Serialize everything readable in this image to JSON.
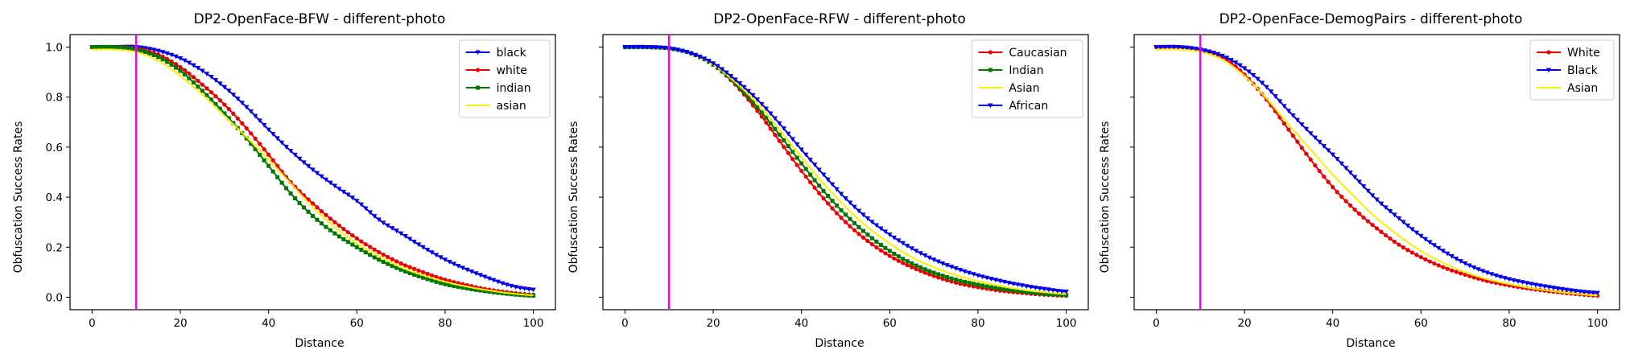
{
  "chart_data": [
    {
      "type": "line",
      "title": "DP2-OpenFace-BFW - different-photo",
      "xlabel": "Distance",
      "ylabel": "Obfuscation Success Rates",
      "xlim": [
        -5,
        105
      ],
      "ylim": [
        -0.05,
        1.05
      ],
      "xticks": [
        "0",
        "20",
        "40",
        "60",
        "80",
        "100"
      ],
      "yticks": [
        "0.0",
        "0.2",
        "0.4",
        "0.6",
        "0.8",
        "1.0"
      ],
      "legend": "top-right",
      "vline": {
        "x": 10,
        "color": "#dd11dd"
      },
      "series": [
        {
          "name": "black",
          "color": "#0000ee",
          "marker": "v",
          "x": [
            0,
            5,
            10,
            15,
            20,
            25,
            30,
            35,
            40,
            45,
            50,
            55,
            60,
            65,
            70,
            75,
            80,
            85,
            90,
            95,
            100
          ],
          "y": [
            1.0,
            1.0,
            1.0,
            0.985,
            0.955,
            0.905,
            0.84,
            0.76,
            0.67,
            0.585,
            0.51,
            0.445,
            0.385,
            0.31,
            0.255,
            0.2,
            0.15,
            0.11,
            0.075,
            0.045,
            0.03
          ]
        },
        {
          "name": "white",
          "color": "#ee0000",
          "marker": "o",
          "x": [
            0,
            5,
            10,
            15,
            20,
            25,
            30,
            35,
            40,
            45,
            50,
            55,
            60,
            65,
            70,
            75,
            80,
            85,
            90,
            95,
            100
          ],
          "y": [
            1.0,
            1.0,
            0.995,
            0.97,
            0.92,
            0.85,
            0.77,
            0.675,
            0.57,
            0.46,
            0.375,
            0.3,
            0.235,
            0.18,
            0.135,
            0.1,
            0.07,
            0.048,
            0.03,
            0.018,
            0.01
          ]
        },
        {
          "name": "indian",
          "color": "#007700",
          "marker": "s",
          "x": [
            0,
            5,
            10,
            15,
            20,
            25,
            30,
            35,
            40,
            45,
            50,
            55,
            60,
            65,
            70,
            75,
            80,
            85,
            90,
            95,
            100
          ],
          "y": [
            1.0,
            1.0,
            0.99,
            0.96,
            0.905,
            0.825,
            0.735,
            0.635,
            0.525,
            0.415,
            0.325,
            0.255,
            0.2,
            0.15,
            0.11,
            0.078,
            0.052,
            0.035,
            0.022,
            0.012,
            0.006
          ]
        },
        {
          "name": "asian",
          "color": "#ffee00",
          "marker": "",
          "x": [
            0,
            5,
            10,
            15,
            20,
            25,
            30,
            35,
            40,
            45,
            50,
            55,
            60,
            65,
            70,
            75,
            80,
            85,
            90,
            95,
            100
          ],
          "y": [
            0.99,
            0.99,
            0.98,
            0.945,
            0.885,
            0.81,
            0.725,
            0.64,
            0.55,
            0.455,
            0.36,
            0.28,
            0.215,
            0.165,
            0.12,
            0.088,
            0.062,
            0.042,
            0.027,
            0.015,
            0.008
          ]
        }
      ]
    },
    {
      "type": "line",
      "title": "DP2-OpenFace-RFW - different-photo",
      "xlabel": "Distance",
      "ylabel": "Obfuscation Success Rates",
      "xlim": [
        -5,
        105
      ],
      "ylim": [
        -0.05,
        1.05
      ],
      "xticks": [
        "0",
        "20",
        "40",
        "60",
        "80",
        "100"
      ],
      "yticks": [
        "",
        "",
        "",
        "",
        "",
        ""
      ],
      "legend": "top-right",
      "vline": {
        "x": 10,
        "color": "#dd11dd"
      },
      "series": [
        {
          "name": "Caucasian",
          "color": "#ee0000",
          "marker": "o",
          "x": [
            0,
            5,
            10,
            15,
            20,
            25,
            30,
            35,
            40,
            45,
            50,
            55,
            60,
            65,
            70,
            75,
            80,
            85,
            90,
            95,
            100
          ],
          "y": [
            1.0,
            1.0,
            0.995,
            0.975,
            0.93,
            0.85,
            0.745,
            0.625,
            0.505,
            0.395,
            0.3,
            0.225,
            0.165,
            0.12,
            0.085,
            0.058,
            0.04,
            0.026,
            0.017,
            0.01,
            0.006
          ]
        },
        {
          "name": "Indian",
          "color": "#007700",
          "marker": "s",
          "x": [
            0,
            5,
            10,
            15,
            20,
            25,
            30,
            35,
            40,
            45,
            50,
            55,
            60,
            65,
            70,
            75,
            80,
            85,
            90,
            95,
            100
          ],
          "y": [
            1.0,
            1.0,
            0.995,
            0.975,
            0.93,
            0.855,
            0.76,
            0.65,
            0.535,
            0.425,
            0.33,
            0.25,
            0.185,
            0.135,
            0.098,
            0.07,
            0.05,
            0.034,
            0.023,
            0.014,
            0.008
          ]
        },
        {
          "name": "Asian",
          "color": "#ffee00",
          "marker": "",
          "x": [
            0,
            5,
            10,
            15,
            20,
            25,
            30,
            35,
            40,
            45,
            50,
            55,
            60,
            65,
            70,
            75,
            80,
            85,
            90,
            95,
            100
          ],
          "y": [
            1.0,
            1.0,
            0.995,
            0.975,
            0.93,
            0.86,
            0.775,
            0.67,
            0.56,
            0.455,
            0.36,
            0.28,
            0.215,
            0.16,
            0.12,
            0.088,
            0.064,
            0.045,
            0.03,
            0.02,
            0.012
          ]
        },
        {
          "name": "African",
          "color": "#0000ee",
          "marker": "v",
          "x": [
            0,
            5,
            10,
            15,
            20,
            25,
            30,
            35,
            40,
            45,
            50,
            55,
            60,
            65,
            70,
            75,
            80,
            85,
            90,
            95,
            100
          ],
          "y": [
            1.0,
            1.0,
            0.995,
            0.975,
            0.935,
            0.87,
            0.79,
            0.695,
            0.59,
            0.49,
            0.395,
            0.315,
            0.25,
            0.195,
            0.15,
            0.115,
            0.087,
            0.065,
            0.047,
            0.033,
            0.022
          ]
        }
      ]
    },
    {
      "type": "line",
      "title": "DP2-OpenFace-DemogPairs - different-photo",
      "xlabel": "Distance",
      "ylabel": "Obfuscation Success Rates",
      "xlim": [
        -5,
        105
      ],
      "ylim": [
        -0.05,
        1.05
      ],
      "xticks": [
        "0",
        "20",
        "40",
        "60",
        "80",
        "100"
      ],
      "yticks": [
        "",
        "",
        "",
        "",
        "",
        ""
      ],
      "legend": "top-right",
      "vline": {
        "x": 10,
        "color": "#dd11dd"
      },
      "series": [
        {
          "name": "White",
          "color": "#ee0000",
          "marker": "o",
          "x": [
            0,
            5,
            10,
            15,
            20,
            25,
            30,
            35,
            40,
            45,
            50,
            55,
            60,
            65,
            70,
            75,
            80,
            85,
            90,
            95,
            100
          ],
          "y": [
            1.0,
            1.0,
            0.99,
            0.96,
            0.89,
            0.79,
            0.67,
            0.55,
            0.44,
            0.35,
            0.275,
            0.21,
            0.16,
            0.12,
            0.09,
            0.065,
            0.047,
            0.033,
            0.022,
            0.013,
            0.006
          ]
        },
        {
          "name": "Black",
          "color": "#0000ee",
          "marker": "v",
          "x": [
            0,
            5,
            10,
            15,
            20,
            25,
            30,
            35,
            40,
            45,
            50,
            55,
            60,
            65,
            70,
            75,
            80,
            85,
            90,
            95,
            100
          ],
          "y": [
            1.0,
            1.0,
            0.99,
            0.965,
            0.915,
            0.84,
            0.745,
            0.655,
            0.57,
            0.48,
            0.39,
            0.315,
            0.245,
            0.185,
            0.135,
            0.098,
            0.072,
            0.053,
            0.038,
            0.025,
            0.017
          ]
        },
        {
          "name": "Asian",
          "color": "#ffee00",
          "marker": "",
          "x": [
            0,
            5,
            10,
            15,
            20,
            25,
            30,
            35,
            40,
            45,
            50,
            55,
            60,
            65,
            70,
            75,
            80,
            85,
            90,
            95,
            100
          ],
          "y": [
            0.99,
            0.99,
            0.98,
            0.95,
            0.885,
            0.795,
            0.69,
            0.59,
            0.49,
            0.4,
            0.315,
            0.245,
            0.185,
            0.138,
            0.1,
            0.072,
            0.052,
            0.036,
            0.024,
            0.014,
            0.007
          ]
        }
      ]
    }
  ]
}
